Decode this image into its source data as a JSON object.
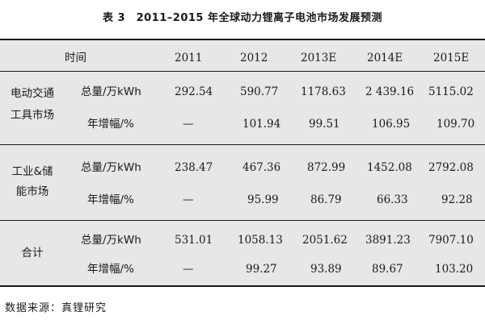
{
  "title": "表 3　2011–2015 年全球动力锂离子电池市场发展预测",
  "header": {
    "time_label": "时间",
    "years": [
      "2011",
      "2012",
      "2013E",
      "2014E",
      "2015E"
    ]
  },
  "groups": [
    {
      "label_line1": "电动交通",
      "label_line2": "工具市场",
      "rows": [
        {
          "metric": "总量/万kWh",
          "values": [
            "292.54",
            "590.77",
            "1178.63",
            "2 439.16",
            "5115.02"
          ]
        },
        {
          "metric": "年增幅/%",
          "values": [
            "—",
            "101.94",
            "99.51",
            "106.95",
            "109.70"
          ]
        }
      ]
    },
    {
      "label_line1": "工业&储",
      "label_line2": "能市场",
      "rows": [
        {
          "metric": "总量/万kWh",
          "values": [
            "238.47",
            "467.36",
            "872.99",
            "1452.08",
            "2792.08"
          ]
        },
        {
          "metric": "年增幅/%",
          "values": [
            "—",
            "95.99",
            "86.79",
            "66.33",
            "92.28"
          ]
        }
      ]
    },
    {
      "label_line1": "合计",
      "label_line2": "",
      "rows": [
        {
          "metric": "总量/万kWh",
          "values": [
            "531.01",
            "1058.13",
            "2051.62",
            "3891.23",
            "7907.10"
          ]
        },
        {
          "metric": "年增幅/%",
          "values": [
            "—",
            "99.27",
            "93.89",
            "89.67",
            "103.20"
          ]
        }
      ]
    }
  ],
  "source": "数据来源：真锂研究"
}
